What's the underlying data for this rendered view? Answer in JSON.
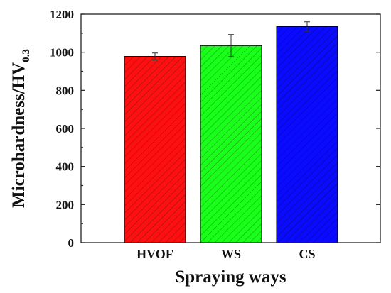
{
  "chart_data": {
    "type": "bar",
    "categories": [
      "HVOF",
      "WS",
      "CS"
    ],
    "values": [
      978,
      1035,
      1135
    ],
    "errors": [
      18,
      58,
      25
    ],
    "colors": [
      "#ff1010",
      "#1aff1a",
      "#0a0aff"
    ],
    "hatch": "diagonal",
    "xlabel": "Spraying ways",
    "ylabel": {
      "main": "Microhardness/HV",
      "subscript": "0.3"
    },
    "ylim": [
      0,
      1200
    ],
    "yticks": [
      0,
      200,
      400,
      600,
      800,
      1000,
      1200
    ],
    "grid": false,
    "legend": false
  }
}
